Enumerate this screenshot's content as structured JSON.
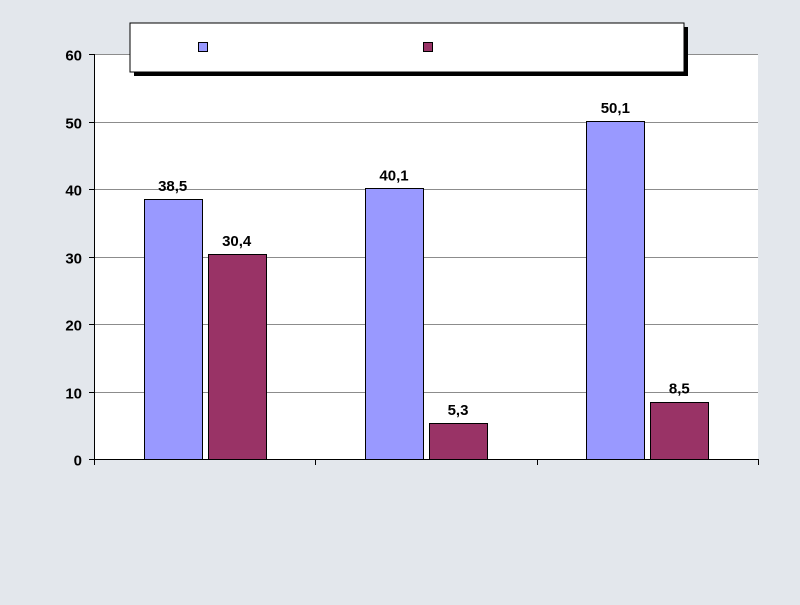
{
  "chart_data": {
    "type": "bar",
    "categories": [
      "",
      "",
      ""
    ],
    "series": [
      {
        "values": [
          38.5,
          40.1,
          50.1
        ],
        "labels": [
          "38,5",
          "40,1",
          "50,1"
        ],
        "color": "#9999ff"
      },
      {
        "values": [
          30.4,
          5.3,
          8.5
        ],
        "labels": [
          "30,4",
          "5,3",
          "8,5"
        ],
        "color": "#993366"
      }
    ],
    "ylim": [
      0,
      60
    ],
    "yticks": [
      0,
      10,
      20,
      30,
      40,
      50,
      60
    ],
    "ytick_labels": [
      "0",
      "10",
      "20",
      "30",
      "40",
      "50",
      "60"
    ],
    "grid": true,
    "legend_position": "top",
    "title": "",
    "xlabel": "",
    "ylabel": "",
    "colors": {
      "background": "#e3e7ec",
      "plot_area": "#ffffff",
      "gridline": "#8c8c8c",
      "axis": "#000000"
    }
  }
}
